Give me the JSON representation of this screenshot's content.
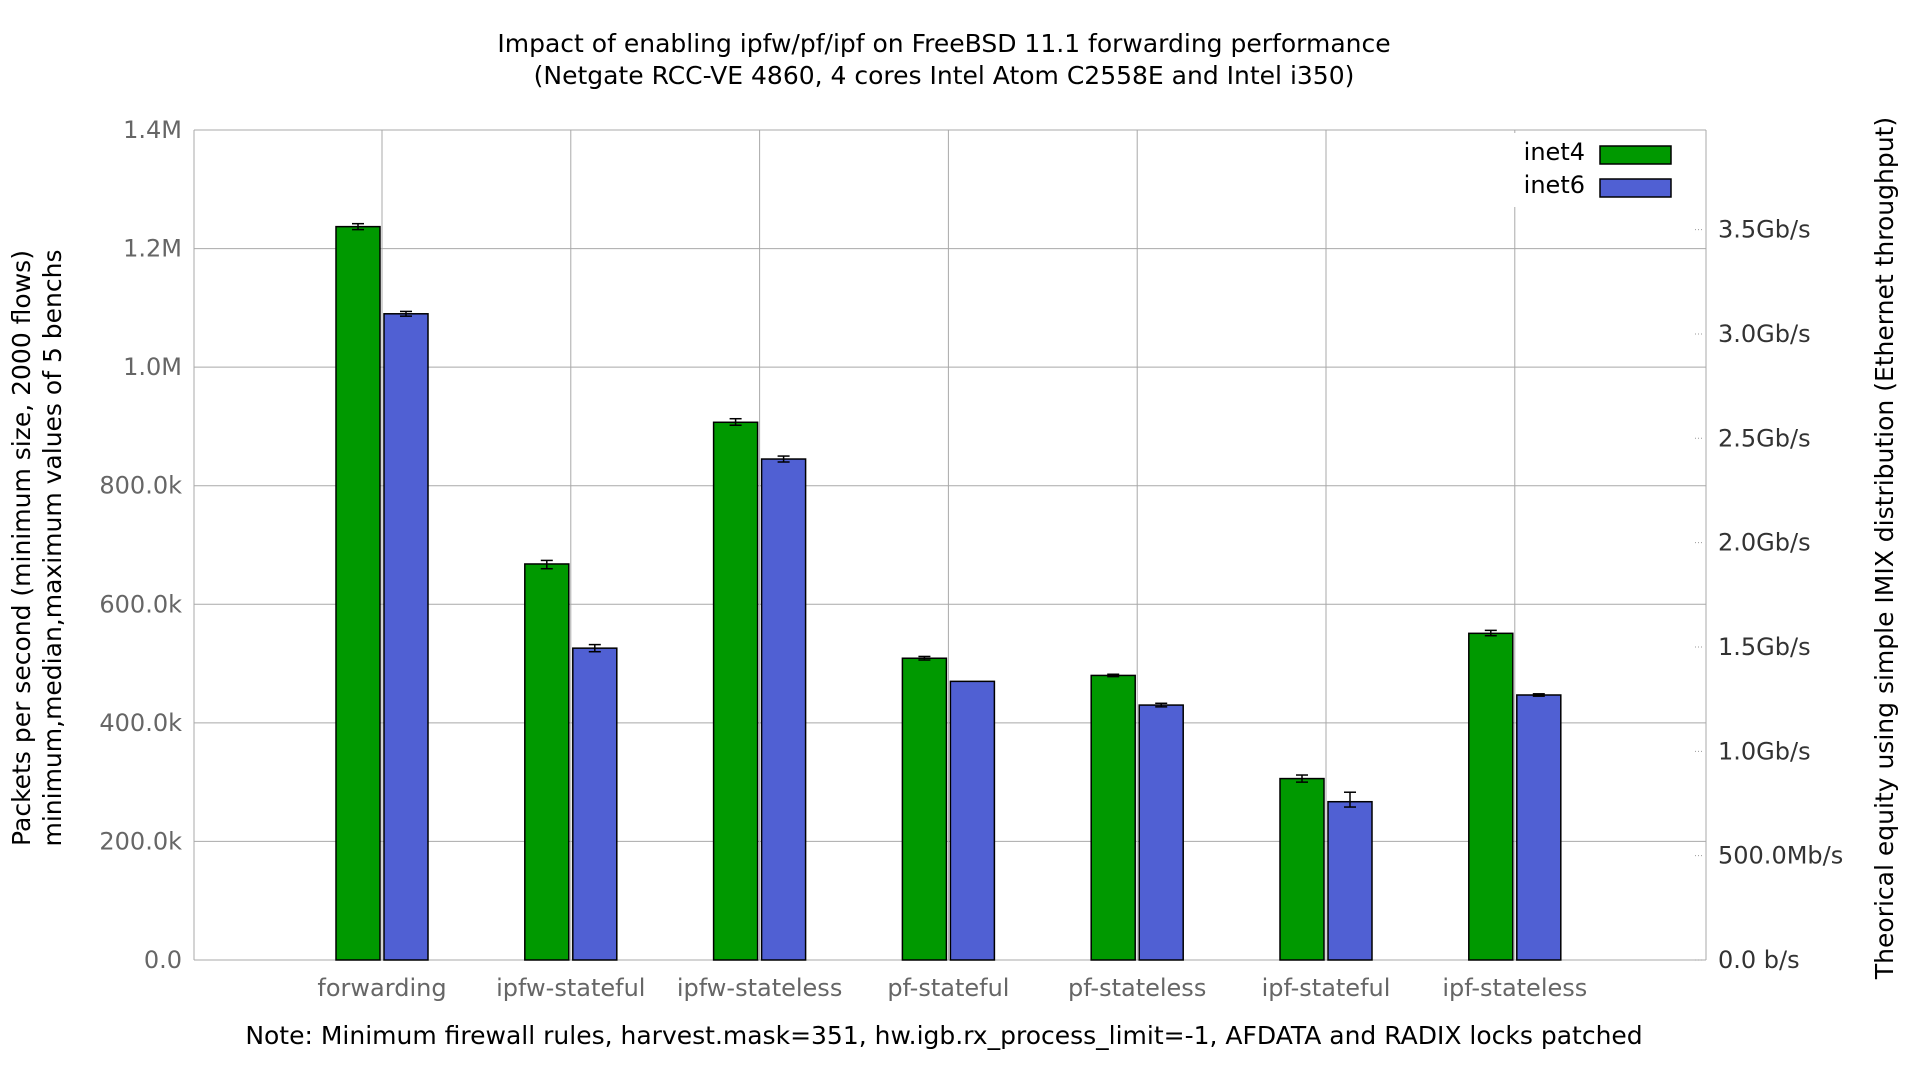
{
  "chart_data": {
    "type": "bar",
    "title": "Impact of enabling ipfw/pf/ipf on FreeBSD 11.1 forwarding performance",
    "subtitle": "(Netgate RCC-VE 4860, 4 cores Intel Atom C2558E and Intel i350)",
    "ylabel": "Packets per second (minimum size, 2000 flows)",
    "ylabel2": "minimum,median,maximum values of 5 benchs",
    "y2label": "Theorical equity using simple IMIX distribution (Ethernet throughput)",
    "note": "Note: Minimum firewall rules, harvest.mask=351, hw.igb.rx_process_limit=-1, AFDATA and RADIX locks patched",
    "categories": [
      "forwarding",
      "ipfw-stateful",
      "ipfw-stateless",
      "pf-stateful",
      "pf-stateless",
      "ipf-stateful",
      "ipf-stateless"
    ],
    "ylim": [
      0,
      1400000
    ],
    "y_ticks": [
      {
        "value": 0,
        "label": "0.0"
      },
      {
        "value": 200000,
        "label": "200.0k"
      },
      {
        "value": 400000,
        "label": "400.0k"
      },
      {
        "value": 600000,
        "label": "600.0k"
      },
      {
        "value": 800000,
        "label": "800.0k"
      },
      {
        "value": 1000000,
        "label": "1.0M"
      },
      {
        "value": 1200000,
        "label": "1.2M"
      },
      {
        "value": 1400000,
        "label": "1.4M"
      }
    ],
    "y2_ticks": [
      {
        "value": 0,
        "label": "0.0 b/s"
      },
      {
        "value": 176000,
        "label": "500.0Mb/s"
      },
      {
        "value": 352000,
        "label": "1.0Gb/s"
      },
      {
        "value": 528000,
        "label": "1.5Gb/s"
      },
      {
        "value": 704000,
        "label": "2.0Gb/s"
      },
      {
        "value": 880000,
        "label": "2.5Gb/s"
      },
      {
        "value": 1056000,
        "label": "3.0Gb/s"
      },
      {
        "value": 1232000,
        "label": "3.5Gb/s"
      }
    ],
    "series": [
      {
        "name": "inet4",
        "color": "#009900",
        "values": [
          1237000,
          668000,
          907000,
          509000,
          480000,
          306000,
          551000
        ],
        "min": [
          1232000,
          660000,
          902000,
          506000,
          478000,
          300000,
          547000
        ],
        "max": [
          1242000,
          674000,
          913000,
          512000,
          482000,
          312000,
          556000
        ]
      },
      {
        "name": "inet6",
        "color": "#5060d3",
        "values": [
          1090000,
          526000,
          845000,
          470000,
          430000,
          267000,
          447000
        ],
        "min": [
          1086000,
          520000,
          840000,
          470000,
          427000,
          258000,
          445000
        ],
        "max": [
          1094000,
          532000,
          850000,
          470000,
          433000,
          283000,
          449000
        ]
      }
    ],
    "legend_position": "top-right",
    "grid": true
  }
}
